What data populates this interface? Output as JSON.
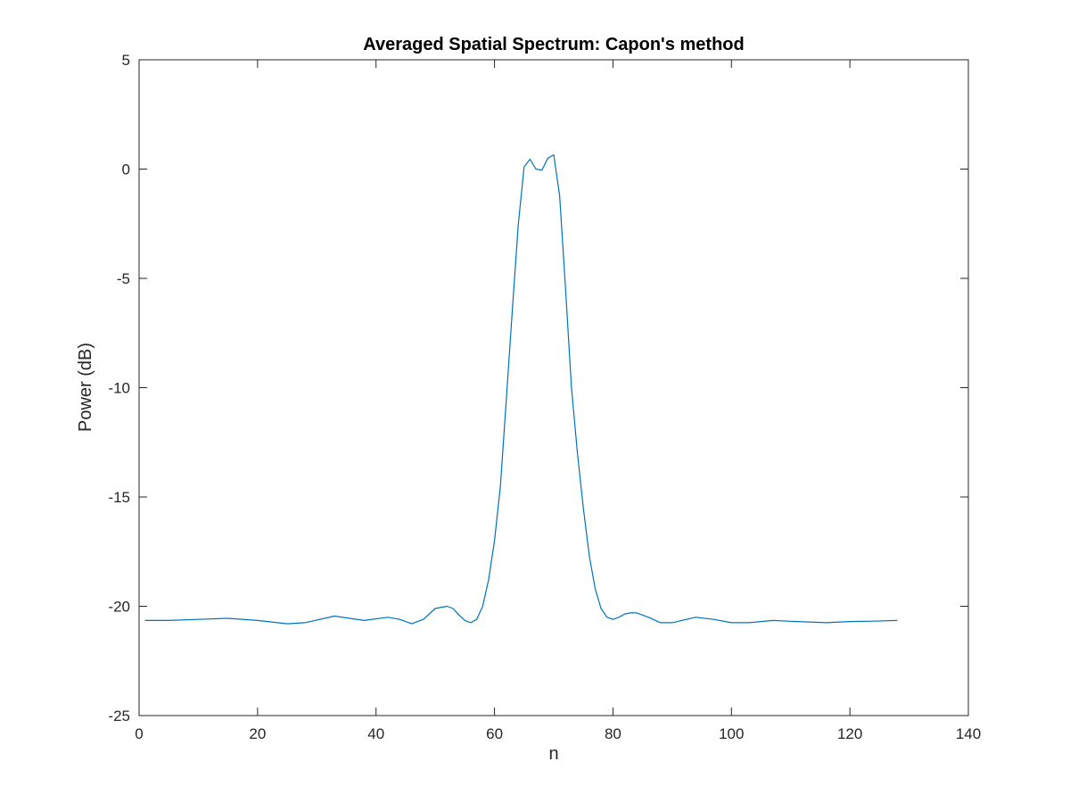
{
  "chart_data": {
    "type": "line",
    "title": "Averaged Spatial Spectrum: Capon's method",
    "xlabel": "n",
    "ylabel": "Power (dB)",
    "xlim": [
      0,
      140
    ],
    "ylim": [
      -25,
      5
    ],
    "xticks": [
      0,
      20,
      40,
      60,
      80,
      100,
      120,
      140
    ],
    "yticks": [
      5,
      0,
      -5,
      -10,
      -15,
      -20,
      -25
    ],
    "grid": false,
    "line_color": "#0072BD",
    "series": [
      {
        "x": [
          1,
          5,
          10,
          15,
          20,
          25,
          28,
          33,
          38,
          42,
          44,
          46,
          48,
          50,
          52,
          53,
          54,
          55,
          56,
          57,
          58,
          59,
          60,
          61,
          62,
          63,
          64,
          65,
          66,
          67,
          68,
          69,
          70,
          71,
          72,
          73,
          74,
          75,
          76,
          77,
          78,
          79,
          80,
          81,
          82,
          83,
          84,
          86,
          88,
          90,
          94,
          97,
          100,
          103,
          107,
          111,
          116,
          120,
          124,
          128
        ],
        "y": [
          -20.65,
          -20.65,
          -20.6,
          -20.55,
          -20.65,
          -20.8,
          -20.75,
          -20.45,
          -20.65,
          -20.5,
          -20.6,
          -20.8,
          -20.6,
          -20.1,
          -20.0,
          -20.1,
          -20.4,
          -20.65,
          -20.75,
          -20.6,
          -20.0,
          -18.8,
          -17.0,
          -14.5,
          -10.5,
          -6.5,
          -2.6,
          0.1,
          0.45,
          0.0,
          -0.05,
          0.5,
          0.65,
          -1.2,
          -5.5,
          -10.0,
          -13.0,
          -15.5,
          -17.7,
          -19.2,
          -20.1,
          -20.5,
          -20.6,
          -20.5,
          -20.35,
          -20.3,
          -20.3,
          -20.5,
          -20.75,
          -20.75,
          -20.5,
          -20.6,
          -20.75,
          -20.75,
          -20.65,
          -20.7,
          -20.75,
          -20.7,
          -20.68,
          -20.65
        ]
      }
    ]
  }
}
